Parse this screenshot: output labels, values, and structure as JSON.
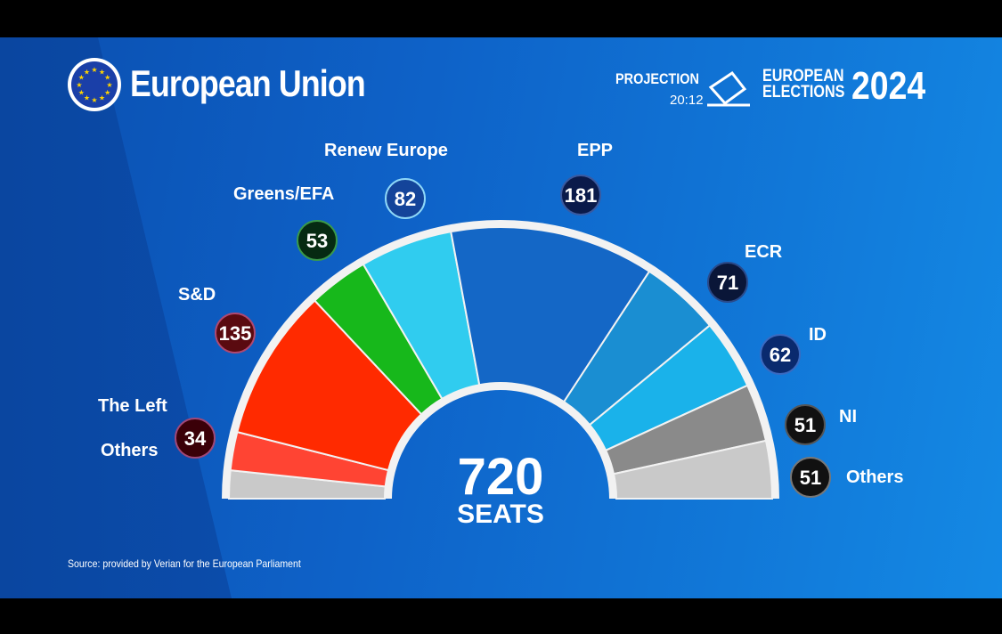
{
  "header": {
    "title": "European Union",
    "projection_label": "PROJECTION",
    "time": "20:12",
    "elections_line1": "EUROPEAN",
    "elections_line2": "ELECTIONS",
    "year": "2024"
  },
  "source": "Source: provided by Verian for the European Parliament",
  "chart_data": {
    "type": "pie",
    "subtype": "hemicycle",
    "total_value": "720",
    "total_label": "SEATS",
    "series": [
      {
        "name": "Others",
        "value": null,
        "color": "#c9c9c9",
        "badge": null
      },
      {
        "name": "The Left",
        "value": 34,
        "color": "#ff4433",
        "badge": "#3a0008",
        "badge_border": "#a04878"
      },
      {
        "name": "S&D",
        "value": 135,
        "color": "#ff2a00",
        "badge": "#5a0a10",
        "badge_border": "#b04870"
      },
      {
        "name": "Greens/EFA",
        "value": 53,
        "color": "#17b81b",
        "badge": "#062a12",
        "badge_border": "#3a9a4a"
      },
      {
        "name": "Renew Europe",
        "value": 82,
        "color": "#30ccef",
        "badge": "#14449a",
        "badge_border": "#8fd8f8"
      },
      {
        "name": "EPP",
        "value": 181,
        "color": "#1467c6",
        "badge": "#0a1a4a",
        "badge_border": "#3a5aa0"
      },
      {
        "name": "ECR",
        "value": 71,
        "color": "#1a8ed2",
        "badge": "#0a1638",
        "badge_border": "#2a4a8a"
      },
      {
        "name": "ID",
        "value": 62,
        "color": "#1ab2ea",
        "badge": "#0a2a6e",
        "badge_border": "#3a6ac0"
      },
      {
        "name": "NI",
        "value": 51,
        "color": "#8a8a8a",
        "badge": "#111111",
        "badge_border": "#555555"
      },
      {
        "name": "Others",
        "value": 51,
        "color": "#c9c9c9",
        "badge": "#111111",
        "badge_border": "#777777"
      }
    ]
  }
}
